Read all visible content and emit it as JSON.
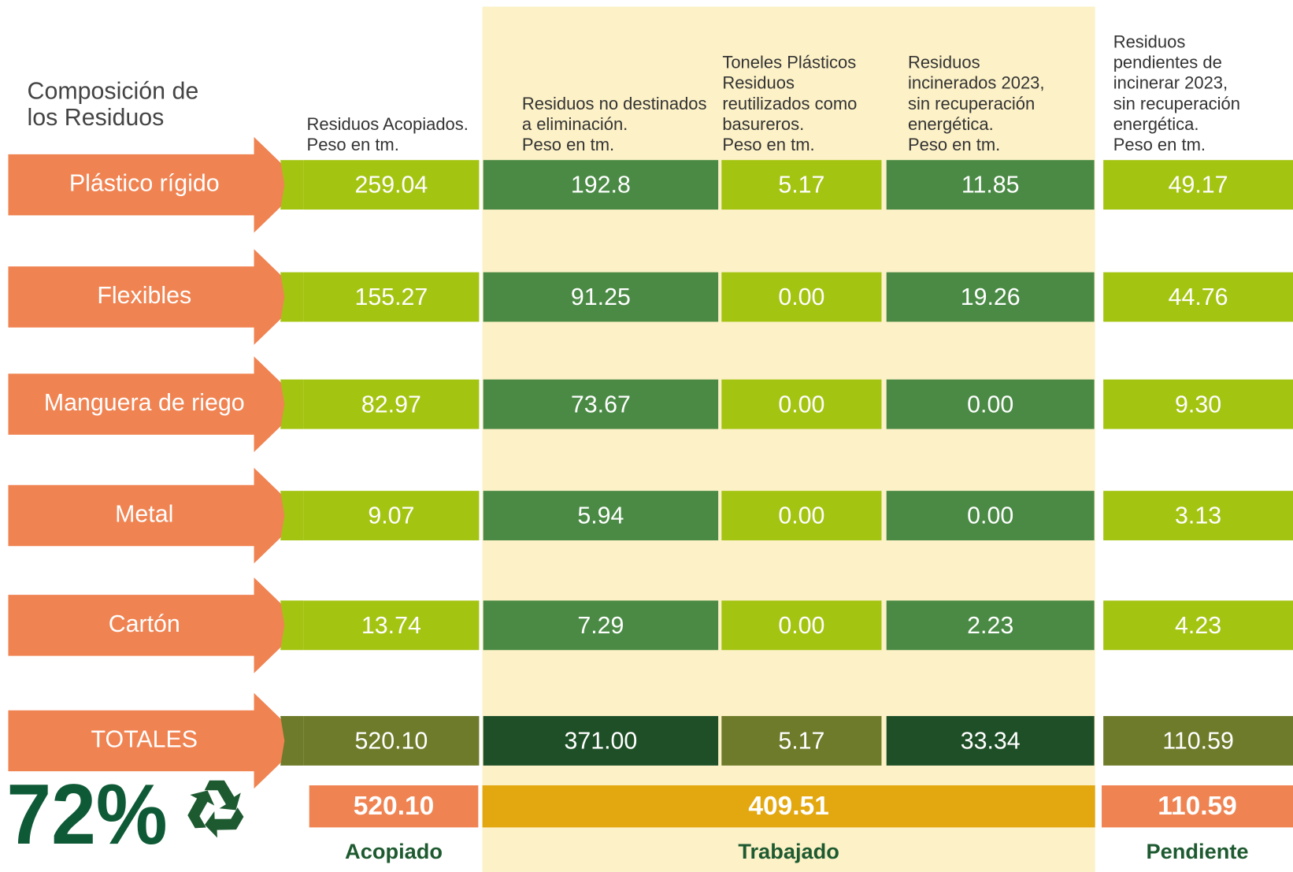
{
  "header": {
    "title": [
      "Composición de",
      "los Residuos"
    ],
    "columns": [
      [
        "Residuos Acopiados.",
        "Peso en tm."
      ],
      [
        "Residuos no destinados",
        "a eliminación.",
        "Peso en tm."
      ],
      [
        "Toneles Plásticos",
        "Residuos",
        "reutilizados como",
        "basureros.",
        "Peso en tm."
      ],
      [
        "Residuos",
        "incinerados  2023,",
        "sin recuperación",
        "energética.",
        "Peso en tm."
      ],
      [
        "Residuos",
        "pendientes de",
        "incinerar 2023,",
        "sin recuperación",
        "energética.",
        "Peso en tm."
      ]
    ]
  },
  "table": {
    "rows": [
      {
        "label": "Plástico rígido",
        "values": [
          "259.04",
          "192.8",
          "5.17",
          "11.85",
          "49.17"
        ]
      },
      {
        "label": "Flexibles",
        "values": [
          "155.27",
          "91.25",
          "0.00",
          "19.26",
          "44.76"
        ]
      },
      {
        "label": "Manguera de riego",
        "values": [
          "82.97",
          "73.67",
          "0.00",
          "0.00",
          "9.30"
        ]
      },
      {
        "label": "Metal",
        "values": [
          "9.07",
          "5.94",
          "0.00",
          "0.00",
          "3.13"
        ]
      },
      {
        "label": "Cartón",
        "values": [
          "13.74",
          "7.29",
          "0.00",
          "2.23",
          "4.23"
        ]
      },
      {
        "label": "TOTALES",
        "values": [
          "520.10",
          "371.00",
          "5.17",
          "33.34",
          "110.59"
        ]
      }
    ]
  },
  "summary": {
    "percent": "72%",
    "items": [
      {
        "value": "520.10",
        "label": "Acopiado"
      },
      {
        "value": "409.51",
        "label": "Trabajado"
      },
      {
        "value": "110.59",
        "label": "Pendiente"
      }
    ]
  }
}
